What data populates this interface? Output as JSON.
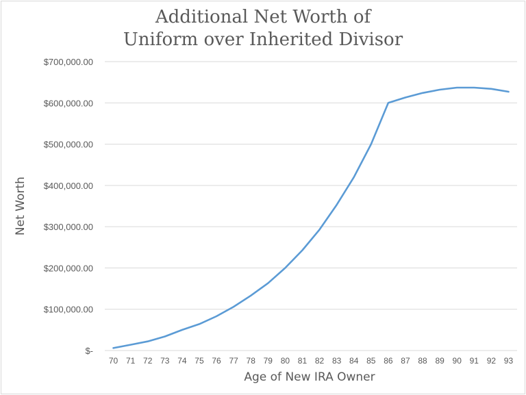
{
  "chart_data": {
    "type": "line",
    "title": [
      "Additional Net Worth of",
      "Uniform over Inherited Divisor"
    ],
    "xlabel": "Age of New IRA Owner",
    "ylabel": "Net Worth",
    "categories": [
      "70",
      "71",
      "72",
      "73",
      "74",
      "75",
      "76",
      "77",
      "78",
      "79",
      "80",
      "81",
      "82",
      "83",
      "84",
      "85",
      "86",
      "87",
      "88",
      "89",
      "90",
      "91",
      "92",
      "93"
    ],
    "series": [
      {
        "values": [
          6000,
          14000,
          22000,
          34000,
          50000,
          64000,
          83000,
          106000,
          133000,
          163000,
          200000,
          243000,
          293000,
          353000,
          420000,
          500000,
          600000,
          613000,
          624000,
          632000,
          637000,
          637000,
          634000,
          627000
        ],
        "color": "#5b9bd5"
      }
    ],
    "ylim": [
      0,
      700000
    ],
    "yticks": [
      0,
      100000,
      200000,
      300000,
      400000,
      500000,
      600000,
      700000
    ],
    "ytick_labels": [
      "$-",
      "$100,000.00",
      "$200,000.00",
      "$300,000.00",
      "$400,000.00",
      "$500,000.00",
      "$600,000.00",
      "$700,000.00"
    ],
    "grid": true,
    "legend": "none"
  }
}
